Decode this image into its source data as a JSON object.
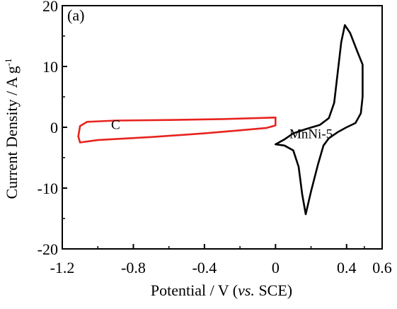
{
  "chart_data": {
    "type": "line",
    "panel_label": "(a)",
    "xlabel": {
      "prefix": "Potential / V (",
      "italic": "vs.",
      "suffix": " SCE)"
    },
    "ylabel": {
      "main": "Current Density / A g",
      "superscript": "-1"
    },
    "xlim": [
      -1.2,
      0.6
    ],
    "ylim": [
      -20,
      20
    ],
    "xticks": [
      {
        "value": -1.2,
        "label": "-1.2"
      },
      {
        "value": -0.8,
        "label": "-0.8"
      },
      {
        "value": -0.4,
        "label": "-0.4"
      },
      {
        "value": 0.0,
        "label": "0"
      },
      {
        "value": 0.4,
        "label": "0.4"
      },
      {
        "value": 0.6,
        "label": "0.6"
      }
    ],
    "yticks": [
      {
        "value": -20,
        "label": "-20"
      },
      {
        "value": -10,
        "label": "-10"
      },
      {
        "value": 0,
        "label": "0"
      },
      {
        "value": 10,
        "label": "10"
      },
      {
        "value": 20,
        "label": "20"
      }
    ],
    "grid": false,
    "legend": "none",
    "series": [
      {
        "name": "C",
        "color": "#e8231f",
        "closed": true,
        "label_at": [
          -0.9,
          -0.3
        ],
        "points": [
          [
            0.0,
            1.6
          ],
          [
            -0.3,
            1.35
          ],
          [
            -0.6,
            1.2
          ],
          [
            -0.9,
            1.1
          ],
          [
            -1.06,
            0.9
          ],
          [
            -1.1,
            0.2
          ],
          [
            -1.11,
            -1.5
          ],
          [
            -1.1,
            -2.5
          ],
          [
            -1.0,
            -2.1
          ],
          [
            -0.7,
            -1.6
          ],
          [
            -0.4,
            -1.0
          ],
          [
            -0.2,
            -0.5
          ],
          [
            -0.05,
            -0.1
          ],
          [
            0.0,
            0.3
          ]
        ]
      },
      {
        "name": "MnNi-5",
        "color": "#000000",
        "closed": true,
        "label_at": [
          0.2,
          -1.8
        ],
        "points": [
          [
            0.0,
            -2.8
          ],
          [
            0.05,
            -2.0
          ],
          [
            0.1,
            -1.0
          ],
          [
            0.17,
            -0.3
          ],
          [
            0.25,
            0.4
          ],
          [
            0.3,
            1.5
          ],
          [
            0.33,
            4.0
          ],
          [
            0.35,
            9.0
          ],
          [
            0.37,
            14.0
          ],
          [
            0.39,
            16.8
          ],
          [
            0.42,
            15.5
          ],
          [
            0.46,
            12.5
          ],
          [
            0.49,
            10.3
          ],
          [
            0.49,
            5.0
          ],
          [
            0.48,
            2.3
          ],
          [
            0.45,
            0.7
          ],
          [
            0.4,
            0.0
          ],
          [
            0.35,
            -0.8
          ],
          [
            0.3,
            -1.8
          ],
          [
            0.27,
            -3.0
          ],
          [
            0.24,
            -6.0
          ],
          [
            0.2,
            -10.5
          ],
          [
            0.17,
            -14.3
          ],
          [
            0.15,
            -11.0
          ],
          [
            0.13,
            -6.5
          ],
          [
            0.1,
            -3.8
          ],
          [
            0.05,
            -3.0
          ],
          [
            0.0,
            -2.8
          ]
        ]
      }
    ]
  }
}
